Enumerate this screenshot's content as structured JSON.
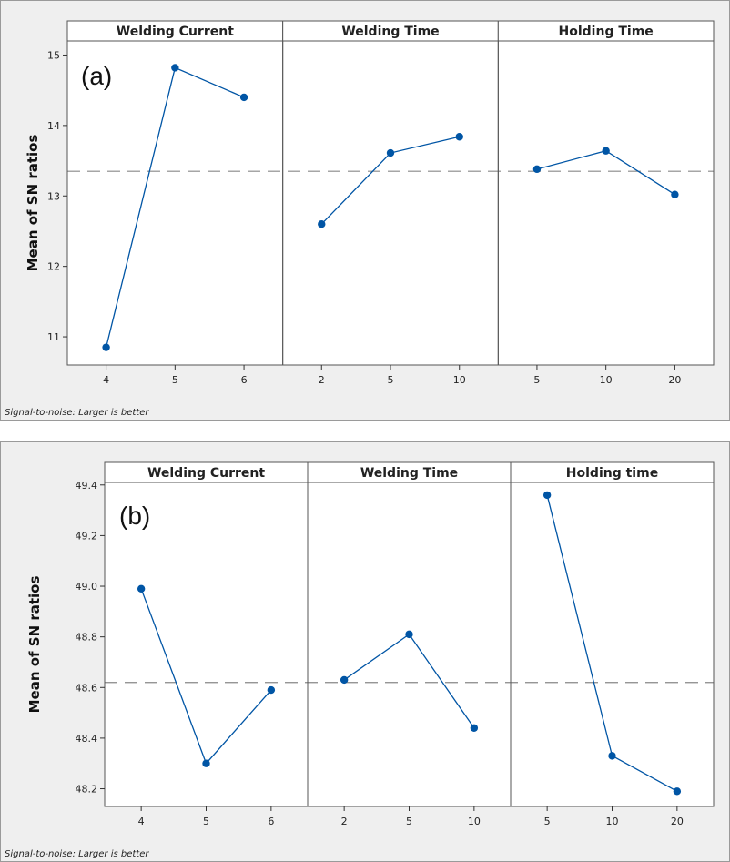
{
  "chart_data": [
    {
      "type": "line",
      "panel_label": "(a)",
      "ylabel": "Mean of SN ratios",
      "ylim": [
        10.6,
        15.2
      ],
      "yticks": [
        "11",
        "12",
        "13",
        "14",
        "15"
      ],
      "mean_line": 13.35,
      "footnote": "Signal-to-noise: Larger is better",
      "line_color": "#0055a5",
      "panels": [
        {
          "title": "Welding Current",
          "categories": [
            "4",
            "5",
            "6"
          ],
          "values": [
            10.85,
            14.82,
            14.4
          ]
        },
        {
          "title": "Welding Time",
          "categories": [
            "2",
            "5",
            "10"
          ],
          "values": [
            12.6,
            13.61,
            13.84
          ]
        },
        {
          "title": "Holding Time",
          "categories": [
            "5",
            "10",
            "20"
          ],
          "values": [
            13.38,
            13.64,
            13.02
          ]
        }
      ]
    },
    {
      "type": "line",
      "panel_label": "(b)",
      "ylabel": "Mean of SN ratios",
      "ylim": [
        48.13,
        49.41
      ],
      "yticks": [
        "48.2",
        "48.4",
        "48.6",
        "48.8",
        "49.0",
        "49.2",
        "49.4"
      ],
      "mean_line": 48.62,
      "footnote": "Signal-to-noise: Larger is better",
      "line_color": "#0055a5",
      "panels": [
        {
          "title": "Welding Current",
          "categories": [
            "4",
            "5",
            "6"
          ],
          "values": [
            48.99,
            48.3,
            48.59
          ]
        },
        {
          "title": "Welding Time",
          "categories": [
            "2",
            "5",
            "10"
          ],
          "values": [
            48.63,
            48.81,
            48.44
          ]
        },
        {
          "title": "Holding time",
          "categories": [
            "5",
            "10",
            "20"
          ],
          "values": [
            49.36,
            48.33,
            48.19
          ]
        }
      ]
    }
  ]
}
